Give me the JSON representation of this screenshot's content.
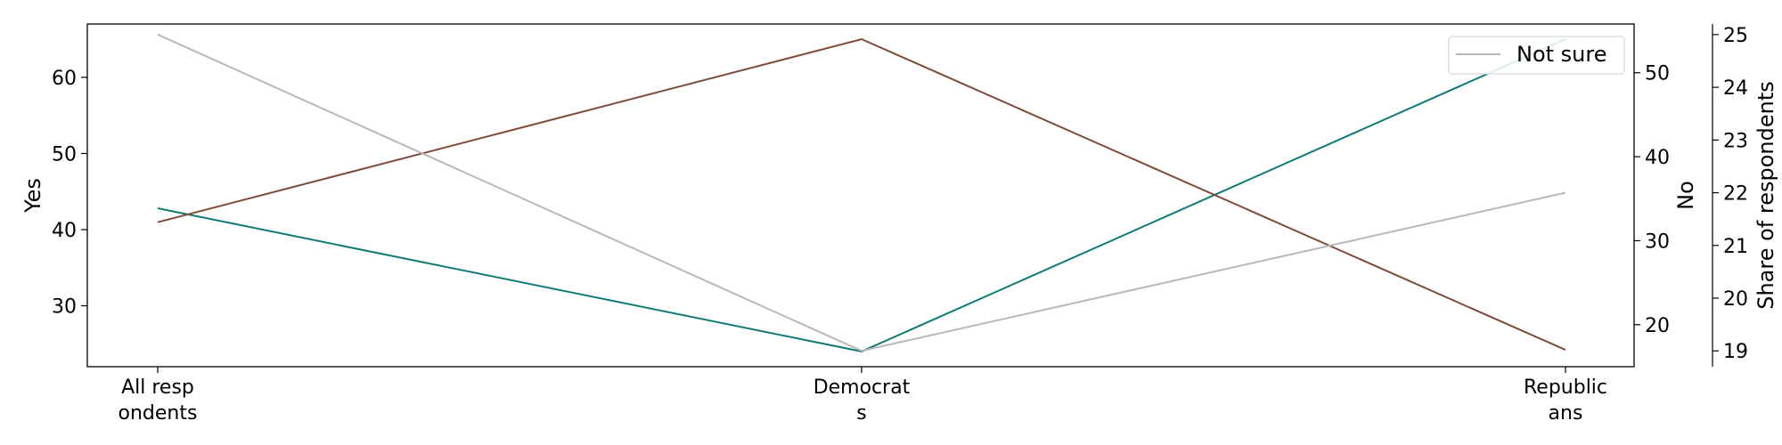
{
  "chart_data": {
    "type": "line",
    "title": "",
    "categories": [
      "All respondents",
      "Democrats",
      "Republicans"
    ],
    "category_tick_lines": [
      [
        "All resp",
        "ondents"
      ],
      [
        "Democrat",
        "s"
      ],
      [
        "Republic",
        "ans"
      ]
    ],
    "axes": {
      "left": {
        "label": "Yes",
        "ylim": [
          22,
          67
        ],
        "ticks": [
          30,
          40,
          50,
          60
        ]
      },
      "right1": {
        "label": "No",
        "ylim": [
          15,
          55.8
        ],
        "ticks": [
          20,
          30,
          40,
          50
        ]
      },
      "right2": {
        "label": "Share of respondents",
        "ylim": [
          18.7,
          25.2
        ],
        "ticks": [
          19,
          20,
          21,
          22,
          23,
          24,
          25
        ]
      }
    },
    "series": [
      {
        "key": "yes",
        "axis": "left",
        "color": "#0f7b76",
        "values": [
          42.8,
          24.0,
          65.0
        ]
      },
      {
        "key": "no",
        "axis": "right1",
        "color": "#7f4a3a",
        "values": [
          32.2,
          54.0,
          17.0
        ]
      },
      {
        "key": "not_sure",
        "name": "Not sure",
        "axis": "right2",
        "color": "#b8b8b8",
        "values": [
          25.0,
          19.0,
          22.0
        ]
      }
    ],
    "legend": {
      "position": "top-right",
      "entries": [
        "Not sure"
      ]
    },
    "grid": false
  }
}
